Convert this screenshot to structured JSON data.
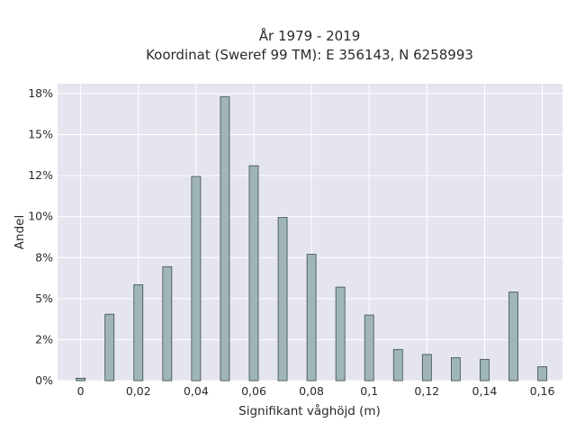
{
  "chart_data": {
    "type": "bar",
    "title": "År 1979 - 2019",
    "subtitle": "Koordinat (Sweref 99 TM): E 356143, N 6258993",
    "xlabel": "Signifikant våghöjd (m)",
    "ylabel": "Andel",
    "x": [
      0,
      0.01,
      0.02,
      0.03,
      0.04,
      0.05,
      0.06,
      0.07,
      0.08,
      0.09,
      0.1,
      0.11,
      0.12,
      0.13,
      0.14,
      0.15,
      0.16
    ],
    "values": [
      0.15,
      4.05,
      5.85,
      6.95,
      12.45,
      17.3,
      13.1,
      9.95,
      7.7,
      5.7,
      4.0,
      1.9,
      1.6,
      1.4,
      1.3,
      5.4,
      0.85
    ],
    "xlim": [
      -0.008,
      0.167
    ],
    "ylim": [
      0,
      18.1
    ],
    "x_ticks": [
      0,
      0.02,
      0.04,
      0.06,
      0.08,
      0.1,
      0.12,
      0.14,
      0.16
    ],
    "x_tick_labels": [
      "0",
      "0,02",
      "0,04",
      "0,06",
      "0,08",
      "0,1",
      "0,12",
      "0,14",
      "0,16"
    ],
    "y_ticks": [
      0,
      2.5,
      5,
      7.5,
      10,
      12.5,
      15,
      17.5
    ],
    "y_tick_labels": [
      "0%",
      "2%",
      "5%",
      "8%",
      "10%",
      "12%",
      "15%",
      "18%"
    ],
    "grid": true,
    "colors": {
      "bar_fill": "#9fb5b6",
      "bar_stroke": "#3b4b4c",
      "plot_bg": "#e5e5ef",
      "grid": "#ffffff"
    }
  }
}
